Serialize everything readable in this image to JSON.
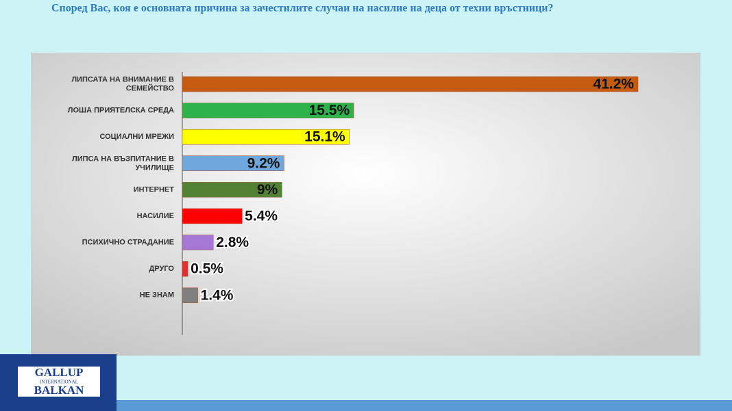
{
  "chart_data": {
    "type": "bar",
    "orientation": "horizontal",
    "title": "Според Вас, коя е основната причина за зачестилите случаи на насилие на деца от техни връстници?",
    "categories": [
      "ЛИПСАТА НА ВНИМАНИЕ В\nСЕМЕЙСТВО",
      "ЛОША ПРИЯТЕЛСКА СРЕДА",
      "СОЦИАЛНИ МРЕЖИ",
      "ЛИПСА НА ВЪЗПИТАНИЕ В\nУЧИЛИЩЕ",
      "ИНТЕРНЕТ",
      "НАСИЛИЕ",
      "ПСИХИЧНО СТРАДАНИЕ",
      "ДРУГО",
      "НЕ ЗНАМ"
    ],
    "values": [
      41.2,
      15.5,
      15.1,
      9.2,
      9,
      5.4,
      2.8,
      0.5,
      1.4
    ],
    "value_labels": [
      "41.2%",
      "15.5%",
      "15.1%",
      "9.2%",
      "9%",
      "5.4%",
      "2.8%",
      "0.5%",
      "1.4%"
    ],
    "colors": [
      "#c55a11",
      "#2db34a",
      "#ffff00",
      "#6fa8dc",
      "#548235",
      "#ff0000",
      "#a678d6",
      "#e03030",
      "#808080"
    ]
  },
  "logo": {
    "line1": "GALLUP",
    "line2": "INTERNATIONAL",
    "line3": "BALKAN"
  }
}
